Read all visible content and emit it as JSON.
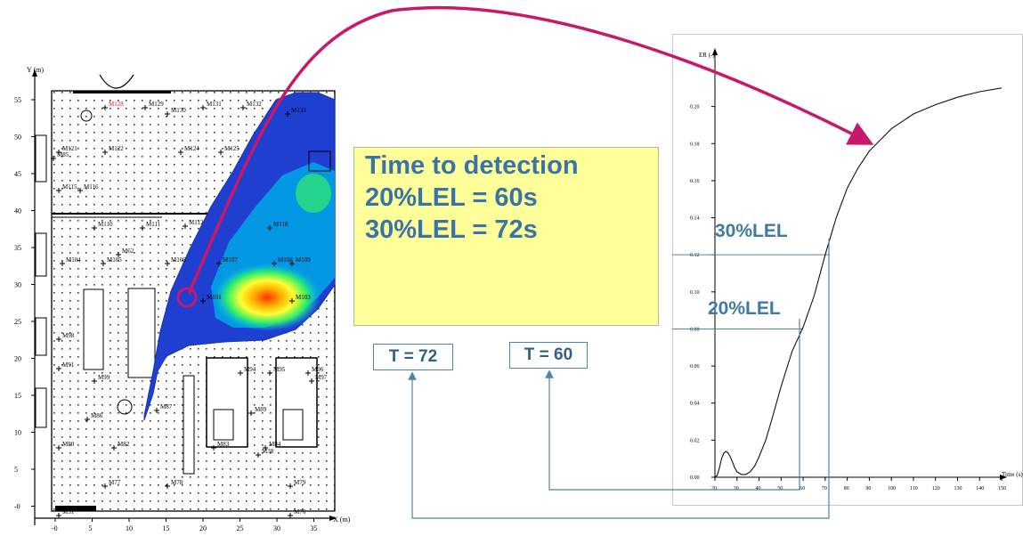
{
  "info_box": {
    "title": "Time to detection",
    "line1": "20%LEL = 60s",
    "line2": "30%LEL = 72s"
  },
  "time_boxes": [
    "T = 72",
    "T = 60"
  ],
  "lel_labels": {
    "high": "30%LEL",
    "low": "20%LEL"
  },
  "colors": {
    "accent_arrow": "#c8186a",
    "connector": "#4f84a9",
    "info_box_bg": "#ffff99",
    "info_text": "#3a73a8",
    "plume_outer": "#1f3fd0",
    "plume_core": "#ff3300"
  },
  "map": {
    "y_label": "Y (m)",
    "x_label": "X (m)",
    "y_ticks": [
      "55",
      "50",
      "45",
      "40",
      "35",
      "30",
      "25",
      "20",
      "15",
      "10",
      "5",
      "-0"
    ],
    "x_ticks": [
      "-0",
      "5",
      "10",
      "15",
      "20",
      "25",
      "30",
      "35"
    ],
    "sensors": [
      {
        "id": "M128",
        "color": "#d02020"
      },
      {
        "id": "M129"
      },
      {
        "id": "M130"
      },
      {
        "id": "M131"
      },
      {
        "id": "M132"
      },
      {
        "id": "M133"
      },
      {
        "id": "M121"
      },
      {
        "id": "M122"
      },
      {
        "id": "M124"
      },
      {
        "id": "M125"
      },
      {
        "id": "M85"
      },
      {
        "id": "M115"
      },
      {
        "id": "M116"
      },
      {
        "id": "M110"
      },
      {
        "id": "M111"
      },
      {
        "id": "M112"
      },
      {
        "id": "M62"
      },
      {
        "id": "M104"
      },
      {
        "id": "M105"
      },
      {
        "id": "M106"
      },
      {
        "id": "M107"
      },
      {
        "id": "M108"
      },
      {
        "id": "M109"
      },
      {
        "id": "M101"
      },
      {
        "id": "M103"
      },
      {
        "id": "M98"
      },
      {
        "id": "M91"
      },
      {
        "id": "M99"
      },
      {
        "id": "M94"
      },
      {
        "id": "M95"
      },
      {
        "id": "M96"
      },
      {
        "id": "M97"
      },
      {
        "id": "M86"
      },
      {
        "id": "M87"
      },
      {
        "id": "M89"
      },
      {
        "id": "M80"
      },
      {
        "id": "M82"
      },
      {
        "id": "M83"
      },
      {
        "id": "M84"
      },
      {
        "id": "M38"
      },
      {
        "id": "M77"
      },
      {
        "id": "M78"
      },
      {
        "id": "M79"
      },
      {
        "id": "M76"
      },
      {
        "id": "M51"
      },
      {
        "id": "M118"
      }
    ]
  },
  "chart_data": {
    "type": "line",
    "ylabel": "ER (-)",
    "xlabel": "Time (s)",
    "xlim": [
      20,
      150
    ],
    "ylim": [
      0,
      0.22
    ],
    "x_ticks": [
      20,
      30,
      40,
      50,
      60,
      70,
      80,
      90,
      100,
      110,
      120,
      130,
      140,
      150
    ],
    "y_ticks": [
      "0.00",
      "0.02",
      "0.04",
      "0.06",
      "0.08",
      "0.10",
      "0.12",
      "0.14",
      "0.16",
      "0.18",
      "0.20"
    ],
    "series": [
      {
        "x": [
          20,
          21,
          22,
          23,
          24,
          25,
          26,
          27,
          28,
          29,
          30,
          32,
          34,
          36,
          38,
          40,
          43,
          46,
          50,
          55,
          60,
          65,
          70,
          75,
          80,
          85,
          90,
          95,
          100,
          110,
          120,
          130,
          140,
          150
        ],
        "values": [
          0,
          0.001,
          0.005,
          0.01,
          0.013,
          0.014,
          0.013,
          0.011,
          0.008,
          0.005,
          0.003,
          0.0015,
          0.0015,
          0.003,
          0.006,
          0.011,
          0.02,
          0.032,
          0.049,
          0.068,
          0.081,
          0.098,
          0.12,
          0.14,
          0.156,
          0.167,
          0.176,
          0.182,
          0.188,
          0.196,
          0.201,
          0.205,
          0.208,
          0.21
        ]
      }
    ],
    "thresholds": [
      {
        "label": "20%LEL",
        "y": 0.08,
        "x": 60
      },
      {
        "label": "30%LEL",
        "y": 0.12,
        "x": 72
      }
    ]
  }
}
